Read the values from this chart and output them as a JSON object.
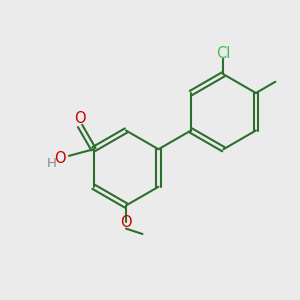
{
  "background_color": "#ebebeb",
  "bond_color": "#2d6e2d",
  "atom_colors": {
    "O": "#cc0000",
    "Cl": "#4db84d",
    "H": "#888888",
    "C": "#2d6e2d"
  },
  "bond_width": 1.5,
  "font_size": 10.5,
  "r": 0.135
}
